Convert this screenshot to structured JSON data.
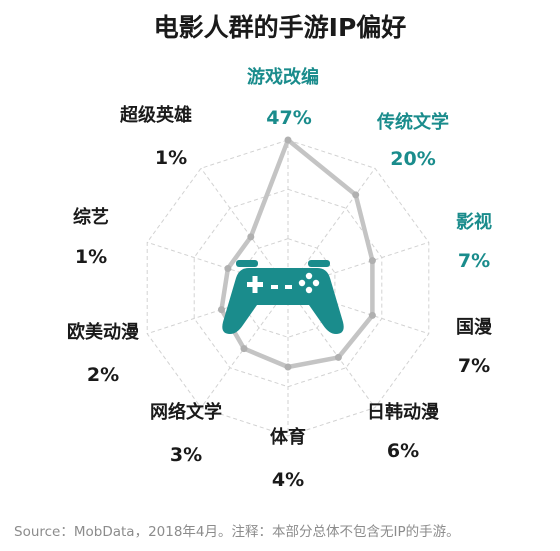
{
  "chart_data": {
    "type": "radar",
    "title": "电影人群的手游IP偏好",
    "categories": [
      "游戏改编",
      "传统文学",
      "影视",
      "国漫",
      "日韩动漫",
      "体育",
      "网络文学",
      "欧美动漫",
      "综艺",
      "超级英雄"
    ],
    "value_labels": [
      "47%",
      "20%",
      "7%",
      "7%",
      "6%",
      "4%",
      "3%",
      "2%",
      "1%",
      "1%"
    ],
    "values": [
      47,
      20,
      7,
      7,
      6,
      4,
      3,
      2,
      1,
      1
    ],
    "highlighted": [
      true,
      true,
      true,
      false,
      false,
      false,
      false,
      false,
      false,
      false
    ],
    "colors": {
      "highlight": "#1a8c8c",
      "normal": "#1a1a1a",
      "line": "#c4c4c4",
      "grid": "#d2d2d2",
      "icon": "#1a8c8c"
    }
  },
  "footer": {
    "source": "Source：MobData，2018年4月。注释：本部分总体不包含无IP的手游。"
  }
}
